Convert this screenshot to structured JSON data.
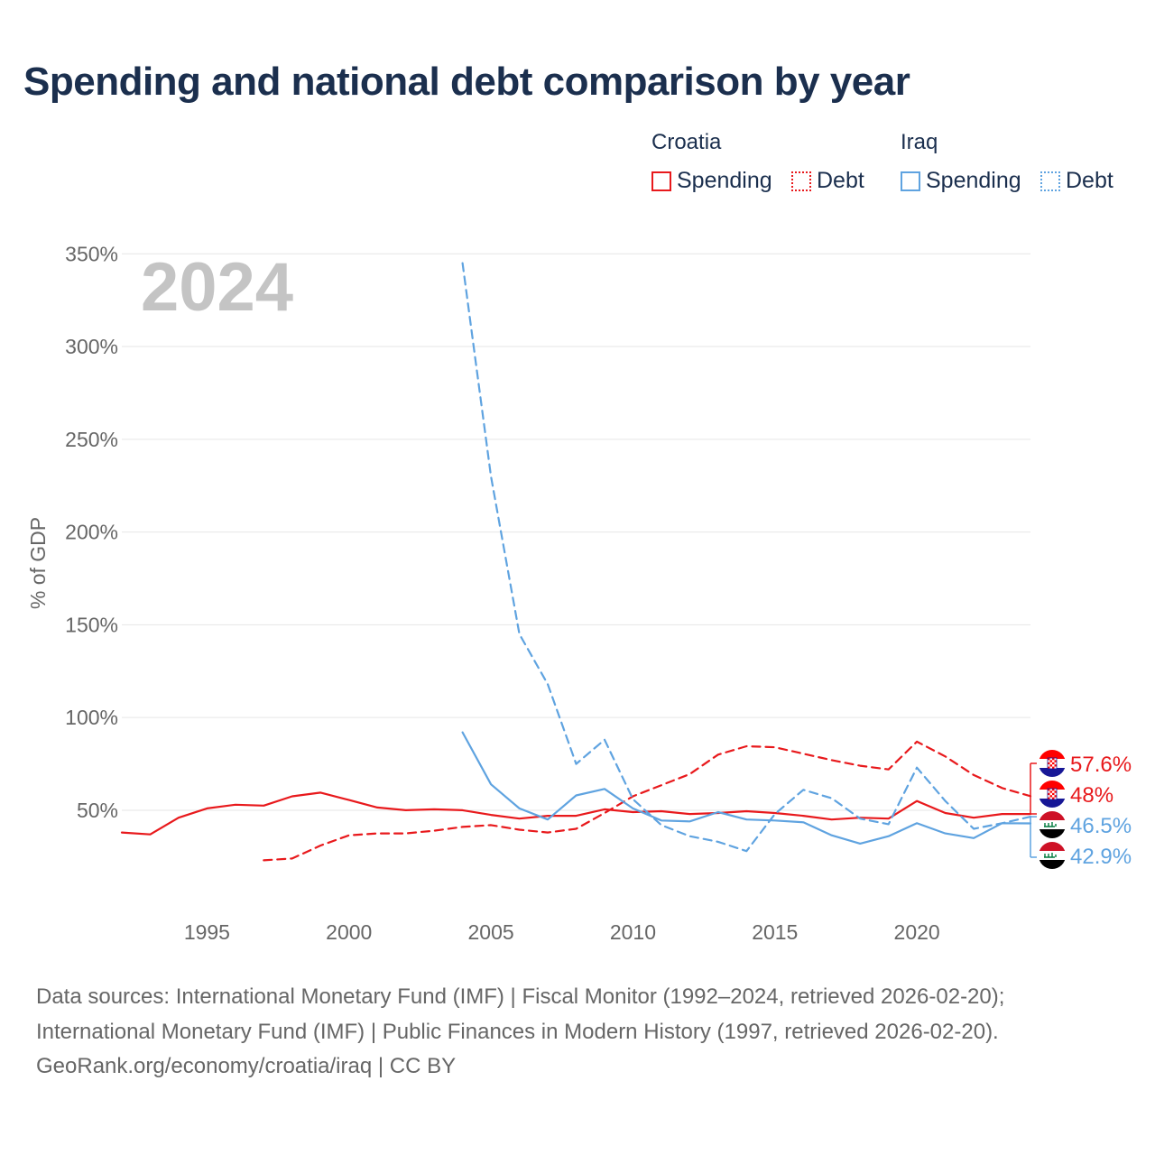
{
  "title": "Spending and national debt comparison by year",
  "legend": {
    "groups": [
      {
        "name": "Croatia",
        "items": [
          {
            "label": "Spending",
            "style": "solid",
            "color": "#e8191c"
          },
          {
            "label": "Debt",
            "style": "dotted",
            "color": "#e8191c"
          }
        ]
      },
      {
        "name": "Iraq",
        "items": [
          {
            "label": "Spending",
            "style": "solid",
            "color": "#5fa3e0"
          },
          {
            "label": "Debt",
            "style": "dotted",
            "color": "#5fa3e0"
          }
        ]
      }
    ]
  },
  "sources": {
    "line1": "Data sources: International Monetary Fund (IMF) | Fiscal Monitor (1992–2024, retrieved 2026-02-20);",
    "line2": "International Monetary Fund (IMF) | Public Finances in Modern History (1997, retrieved 2026-02-20).",
    "line3": "GeoRank.org/economy/croatia/iraq | CC BY"
  },
  "colors": {
    "croatia": "#e8191c",
    "iraq": "#5fa3e0",
    "title": "#1b2f4e",
    "axis_text": "#666666",
    "grid": "#e6e6e6",
    "watermark": "#c4c4c4"
  },
  "chart_data": {
    "type": "line",
    "title": "Spending and national debt comparison by year",
    "year_label": "2024",
    "ylabel": "% of GDP",
    "xlabel": "",
    "xlim": [
      1992,
      2024
    ],
    "ylim": [
      -5,
      355
    ],
    "y_ticks": [
      50,
      100,
      150,
      200,
      250,
      300,
      350
    ],
    "y_tick_labels": [
      "50%",
      "100%",
      "150%",
      "200%",
      "250%",
      "300%",
      "350%"
    ],
    "x_ticks": [
      1995,
      2000,
      2005,
      2010,
      2015,
      2020
    ],
    "x_tick_labels": [
      "1995",
      "2000",
      "2005",
      "2010",
      "2015",
      "2020"
    ],
    "grid": true,
    "series": [
      {
        "name": "Croatia Spending",
        "country": "Croatia",
        "metric": "Spending",
        "color": "#e8191c",
        "dash": "solid",
        "x": [
          1992,
          1993,
          1994,
          1995,
          1996,
          1997,
          1998,
          1999,
          2000,
          2001,
          2002,
          2003,
          2004,
          2005,
          2006,
          2007,
          2008,
          2009,
          2010,
          2011,
          2012,
          2013,
          2014,
          2015,
          2016,
          2017,
          2018,
          2019,
          2020,
          2021,
          2022,
          2023,
          2024
        ],
        "values": [
          38,
          37,
          46,
          51,
          53,
          52.5,
          57.5,
          59.5,
          55.5,
          51.5,
          50,
          50.5,
          50,
          47.5,
          45.5,
          47,
          47,
          50.5,
          49,
          49.5,
          48,
          48.5,
          49.5,
          48.5,
          47,
          45,
          46,
          45.5,
          55,
          48.5,
          46,
          48,
          48
        ]
      },
      {
        "name": "Croatia Debt",
        "country": "Croatia",
        "metric": "Debt",
        "color": "#e8191c",
        "dash": "dashed",
        "x": [
          1997,
          1998,
          1999,
          2000,
          2001,
          2002,
          2003,
          2004,
          2005,
          2006,
          2007,
          2008,
          2009,
          2010,
          2011,
          2012,
          2013,
          2014,
          2015,
          2016,
          2017,
          2018,
          2019,
          2020,
          2021,
          2022,
          2023,
          2024
        ],
        "values": [
          23,
          24,
          31,
          36.5,
          37.5,
          37.5,
          39,
          41,
          42,
          39.5,
          38,
          40,
          48.5,
          57.5,
          63.5,
          69.5,
          80,
          84.5,
          84,
          80.5,
          77,
          74,
          72,
          87,
          79,
          69,
          62,
          57.6
        ]
      },
      {
        "name": "Iraq Spending",
        "country": "Iraq",
        "metric": "Spending",
        "color": "#5fa3e0",
        "dash": "solid",
        "x": [
          2004,
          2005,
          2006,
          2007,
          2008,
          2009,
          2010,
          2011,
          2012,
          2013,
          2014,
          2015,
          2016,
          2017,
          2018,
          2019,
          2020,
          2021,
          2022,
          2023,
          2024
        ],
        "values": [
          92,
          64,
          51,
          45,
          58,
          61.5,
          51,
          44.5,
          44,
          49,
          45,
          44.5,
          43.5,
          36.5,
          32,
          36,
          43,
          37.5,
          35,
          43,
          42.9
        ]
      },
      {
        "name": "Iraq Debt",
        "country": "Iraq",
        "metric": "Debt",
        "color": "#5fa3e0",
        "dash": "dashed",
        "x": [
          2004,
          2005,
          2006,
          2007,
          2008,
          2009,
          2010,
          2011,
          2012,
          2013,
          2014,
          2015,
          2016,
          2017,
          2018,
          2019,
          2020,
          2021,
          2022,
          2023,
          2024
        ],
        "values": [
          345,
          230,
          145,
          118,
          75,
          88,
          56,
          42,
          36,
          33,
          28,
          48,
          61,
          56.5,
          45.5,
          42.5,
          73,
          55,
          40,
          43,
          46.5
        ]
      }
    ],
    "end_labels": [
      {
        "text": "57.6%",
        "country": "Croatia",
        "color": "#e8191c"
      },
      {
        "text": "48%",
        "country": "Croatia",
        "color": "#e8191c"
      },
      {
        "text": "46.5%",
        "country": "Iraq",
        "color": "#5fa3e0"
      },
      {
        "text": "42.9%",
        "country": "Iraq",
        "color": "#5fa3e0"
      }
    ]
  }
}
